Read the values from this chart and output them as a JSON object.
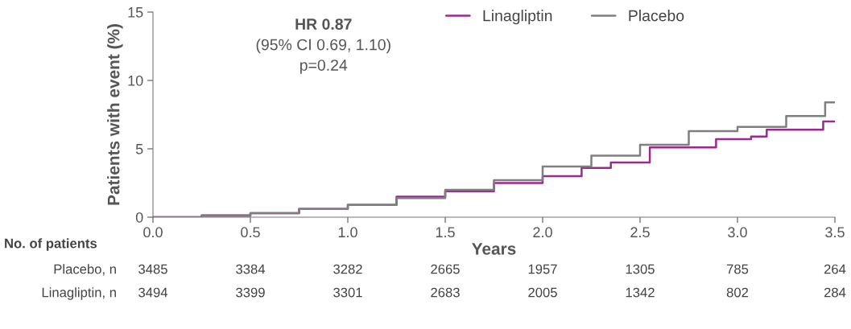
{
  "chart_data": {
    "type": "step",
    "xlabel": "Years",
    "ylabel": "Patients with event (%)",
    "xlim": [
      0,
      3.5
    ],
    "xticks": [
      {
        "value": 0,
        "label": "0.0"
      },
      0.5,
      {
        "value": 1,
        "label": "1.0"
      },
      1.5,
      {
        "value": 2,
        "label": "2.0"
      },
      2.5,
      {
        "value": 3,
        "label": "3.0"
      },
      3.5
    ],
    "ylim": [
      0,
      15
    ],
    "yticks": [
      0,
      5,
      10,
      15
    ],
    "grid": false,
    "legend": "top right",
    "series": [
      {
        "name": "Linagliptin",
        "color": "#9b2a8e",
        "x": [
          0,
          0.25,
          0.5,
          0.75,
          1.0,
          1.25,
          1.5,
          1.75,
          2.0,
          2.2,
          2.35,
          2.55,
          2.89,
          3.07,
          3.15,
          3.44,
          3.5
        ],
        "values": [
          0,
          0.1,
          0.3,
          0.6,
          0.9,
          1.5,
          1.9,
          2.5,
          3.0,
          3.6,
          4.0,
          5.1,
          5.7,
          5.9,
          6.4,
          7.0,
          7.0
        ]
      },
      {
        "name": "Placebo",
        "color": "#7f7f7f",
        "x": [
          0,
          0.25,
          0.5,
          0.75,
          1.0,
          1.25,
          1.5,
          1.75,
          2.0,
          2.25,
          2.5,
          2.75,
          3.0,
          3.25,
          3.45,
          3.5
        ],
        "values": [
          0,
          0.15,
          0.3,
          0.6,
          0.9,
          1.4,
          2.0,
          2.7,
          3.7,
          4.5,
          5.3,
          6.3,
          6.6,
          7.4,
          8.4,
          8.4
        ]
      }
    ],
    "annotations": [
      "HR 0.87",
      "(95% CI 0.69, 1.10)",
      "p=0.24",
      "No. of patients",
      "Placebo, n",
      "3485",
      "3384",
      "3282",
      "2665",
      "1957",
      "1305",
      "785",
      "264",
      "Linagliptin, n",
      "3494",
      "3399",
      "3301",
      "2683",
      "2005",
      "1342",
      "802",
      "284"
    ]
  }
}
